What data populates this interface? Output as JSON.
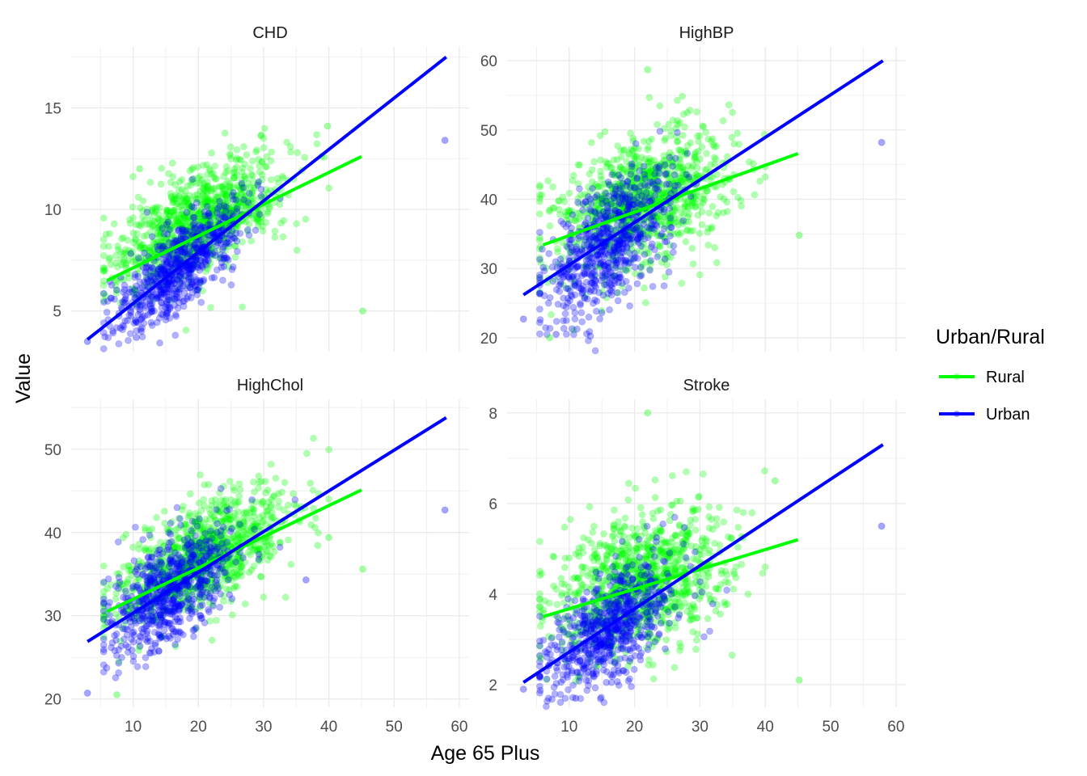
{
  "chart_data": {
    "type": "scatter",
    "xlabel": "Age 65 Plus",
    "ylabel": "Value",
    "x_ticks": [
      10,
      20,
      30,
      40,
      50,
      60
    ],
    "grid": true,
    "legend": {
      "title": "Urban/Rural",
      "placement": "right",
      "entries": [
        {
          "label": "Rural",
          "color": "#00ff00"
        },
        {
          "label": "Urban",
          "color": "#0000ff"
        }
      ]
    },
    "series_colors": {
      "Rural": "#00ff00",
      "Urban": "#0000ff"
    },
    "facets": [
      {
        "title": "CHD",
        "xlim": [
          0.5,
          61.5
        ],
        "ylim": [
          3.0,
          18.0
        ],
        "yticks": [
          5,
          10,
          15
        ],
        "fits": {
          "Rural": {
            "x": [
              6,
              45
            ],
            "y": [
              6.5,
              12.6
            ]
          },
          "Urban": {
            "x": [
              3,
              58
            ],
            "y": [
              3.6,
              17.5
            ]
          }
        },
        "outliers": [
          {
            "group": "Urban",
            "x": 3,
            "y": 3.5
          },
          {
            "group": "Urban",
            "x": 57.8,
            "y": 13.4
          },
          {
            "group": "Rural",
            "x": 45.2,
            "y": 5.0
          },
          {
            "group": "Rural",
            "x": 39.8,
            "y": 14.1
          },
          {
            "group": "Rural",
            "x": 11,
            "y": 12.0
          },
          {
            "group": "Urban",
            "x": 10.5,
            "y": 3.7
          }
        ],
        "cloud": {
          "Rural": {
            "cx": 20,
            "sx": 6.5,
            "slope": 0.155,
            "intercept": 6.3,
            "noise": 1.25,
            "n": 1000
          },
          "Urban": {
            "cx": 17,
            "sx": 5.0,
            "slope": 0.25,
            "intercept": 2.9,
            "noise": 1.0,
            "n": 700
          }
        }
      },
      {
        "title": "HighBP",
        "xlim": [
          0.5,
          61.5
        ],
        "ylim": [
          18.0,
          62.0
        ],
        "yticks": [
          20,
          30,
          40,
          50,
          60
        ],
        "fits": {
          "Rural": {
            "x": [
              6,
              45
            ],
            "y": [
              33.4,
              46.6
            ]
          },
          "Urban": {
            "x": [
              3,
              58
            ],
            "y": [
              26.2,
              60.0
            ]
          }
        },
        "outliers": [
          {
            "group": "Urban",
            "x": 3,
            "y": 22.7
          },
          {
            "group": "Urban",
            "x": 57.8,
            "y": 48.2
          },
          {
            "group": "Rural",
            "x": 45.2,
            "y": 34.8
          },
          {
            "group": "Rural",
            "x": 22,
            "y": 58.7
          },
          {
            "group": "Rural",
            "x": 7,
            "y": 20.0
          },
          {
            "group": "Urban",
            "x": 8,
            "y": 20.5
          }
        ],
        "cloud": {
          "Rural": {
            "cx": 21,
            "sx": 6.5,
            "slope": 0.34,
            "intercept": 32.5,
            "noise": 4.5,
            "n": 1000
          },
          "Urban": {
            "cx": 16,
            "sx": 4.8,
            "slope": 0.62,
            "intercept": 24.0,
            "noise": 4.5,
            "n": 700
          }
        }
      },
      {
        "title": "HighChol",
        "xlim": [
          0.5,
          61.5
        ],
        "ylim": [
          19.0,
          56.0
        ],
        "yticks": [
          20,
          30,
          40,
          50
        ],
        "fits": {
          "Rural": {
            "x": [
              6,
              45
            ],
            "y": [
              30.5,
              45.1
            ]
          },
          "Urban": {
            "x": [
              3,
              58
            ],
            "y": [
              26.9,
              53.8
            ]
          }
        },
        "outliers": [
          {
            "group": "Urban",
            "x": 3,
            "y": 20.7
          },
          {
            "group": "Urban",
            "x": 57.8,
            "y": 42.7
          },
          {
            "group": "Rural",
            "x": 45.2,
            "y": 35.6
          },
          {
            "group": "Rural",
            "x": 40,
            "y": 39.4
          },
          {
            "group": "Rural",
            "x": 7.5,
            "y": 20.5
          },
          {
            "group": "Urban",
            "x": 36.5,
            "y": 34.3
          }
        ],
        "cloud": {
          "Rural": {
            "cx": 21,
            "sx": 6.5,
            "slope": 0.37,
            "intercept": 29.5,
            "noise": 3.0,
            "n": 1000
          },
          "Urban": {
            "cx": 16,
            "sx": 4.8,
            "slope": 0.49,
            "intercept": 25.5,
            "noise": 3.0,
            "n": 700
          }
        }
      },
      {
        "title": "Stroke",
        "xlim": [
          0.5,
          61.5
        ],
        "ylim": [
          1.5,
          8.3
        ],
        "yticks": [
          2,
          4,
          6,
          8
        ],
        "fits": {
          "Rural": {
            "x": [
              6,
              45
            ],
            "y": [
              3.5,
              5.2
            ]
          },
          "Urban": {
            "x": [
              3,
              58
            ],
            "y": [
              2.05,
              7.3
            ]
          }
        },
        "outliers": [
          {
            "group": "Urban",
            "x": 3,
            "y": 1.9
          },
          {
            "group": "Urban",
            "x": 57.8,
            "y": 5.5
          },
          {
            "group": "Rural",
            "x": 45.2,
            "y": 2.1
          },
          {
            "group": "Rural",
            "x": 22,
            "y": 8.0
          },
          {
            "group": "Rural",
            "x": 41.5,
            "y": 6.5
          },
          {
            "group": "Urban",
            "x": 11,
            "y": 1.7
          }
        ],
        "cloud": {
          "Rural": {
            "cx": 21,
            "sx": 6.5,
            "slope": 0.043,
            "intercept": 3.4,
            "noise": 0.75,
            "n": 1000
          },
          "Urban": {
            "cx": 16,
            "sx": 4.8,
            "slope": 0.095,
            "intercept": 1.75,
            "noise": 0.6,
            "n": 700
          }
        }
      }
    ]
  }
}
